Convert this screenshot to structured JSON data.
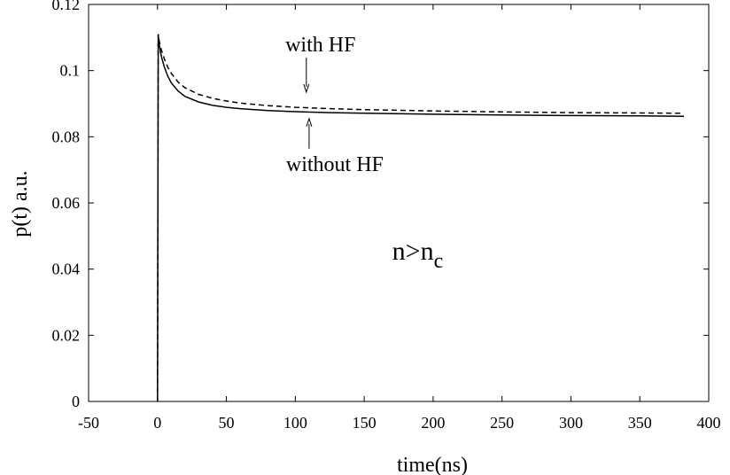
{
  "chart_data": {
    "type": "line",
    "title": "",
    "xlabel": "time(ns)",
    "ylabel": "p(t) a.u.",
    "xlim": [
      -50,
      400
    ],
    "ylim": [
      0,
      0.12
    ],
    "grid": false,
    "x_ticks": [
      -50,
      0,
      50,
      100,
      150,
      200,
      250,
      300,
      350,
      400
    ],
    "x_tick_labels": [
      "-50",
      "0",
      "50",
      "100",
      "150",
      "200",
      "250",
      "300",
      "350",
      "400"
    ],
    "y_ticks": [
      0,
      0.02,
      0.04,
      0.06,
      0.08,
      0.1,
      0.12
    ],
    "y_tick_labels": [
      "0",
      "0.02",
      "0.04",
      "0.06",
      "0.08",
      "0.1",
      "0.12"
    ],
    "series": [
      {
        "name": "with HF",
        "style": "dashed",
        "color": "#000000",
        "x": [
          0,
          0.5,
          1,
          2,
          3,
          5,
          7.5,
          10,
          15,
          20,
          30,
          40,
          50,
          60,
          80,
          100,
          125,
          150,
          200,
          250,
          300,
          350,
          382
        ],
        "y": [
          0,
          0.111,
          0.1095,
          0.1075,
          0.106,
          0.1035,
          0.101,
          0.0992,
          0.0965,
          0.0948,
          0.0928,
          0.0916,
          0.0908,
          0.0902,
          0.0894,
          0.0889,
          0.0885,
          0.0882,
          0.0878,
          0.0875,
          0.0873,
          0.0872,
          0.0871
        ]
      },
      {
        "name": "without HF",
        "style": "solid",
        "color": "#000000",
        "x": [
          0,
          0.5,
          1,
          2,
          3,
          5,
          7.5,
          10,
          15,
          20,
          30,
          40,
          50,
          60,
          80,
          100,
          125,
          150,
          200,
          250,
          300,
          350,
          382
        ],
        "y": [
          0,
          0.111,
          0.1085,
          0.106,
          0.104,
          0.101,
          0.0983,
          0.0963,
          0.0938,
          0.0922,
          0.0905,
          0.0895,
          0.0889,
          0.0885,
          0.0879,
          0.0876,
          0.0873,
          0.0871,
          0.0868,
          0.0866,
          0.0864,
          0.0863,
          0.0862
        ]
      }
    ],
    "annotations": [
      {
        "text": "with HF",
        "x": 108,
        "y": 0.105,
        "arrow_to": [
          108,
          0.0935
        ]
      },
      {
        "text": "without HF",
        "x": 110,
        "y": 0.0705,
        "arrow_to": [
          110,
          0.0855
        ]
      },
      {
        "text_main": "n>n",
        "text_sub": "c",
        "x": 178,
        "y": 0.0455
      }
    ]
  }
}
